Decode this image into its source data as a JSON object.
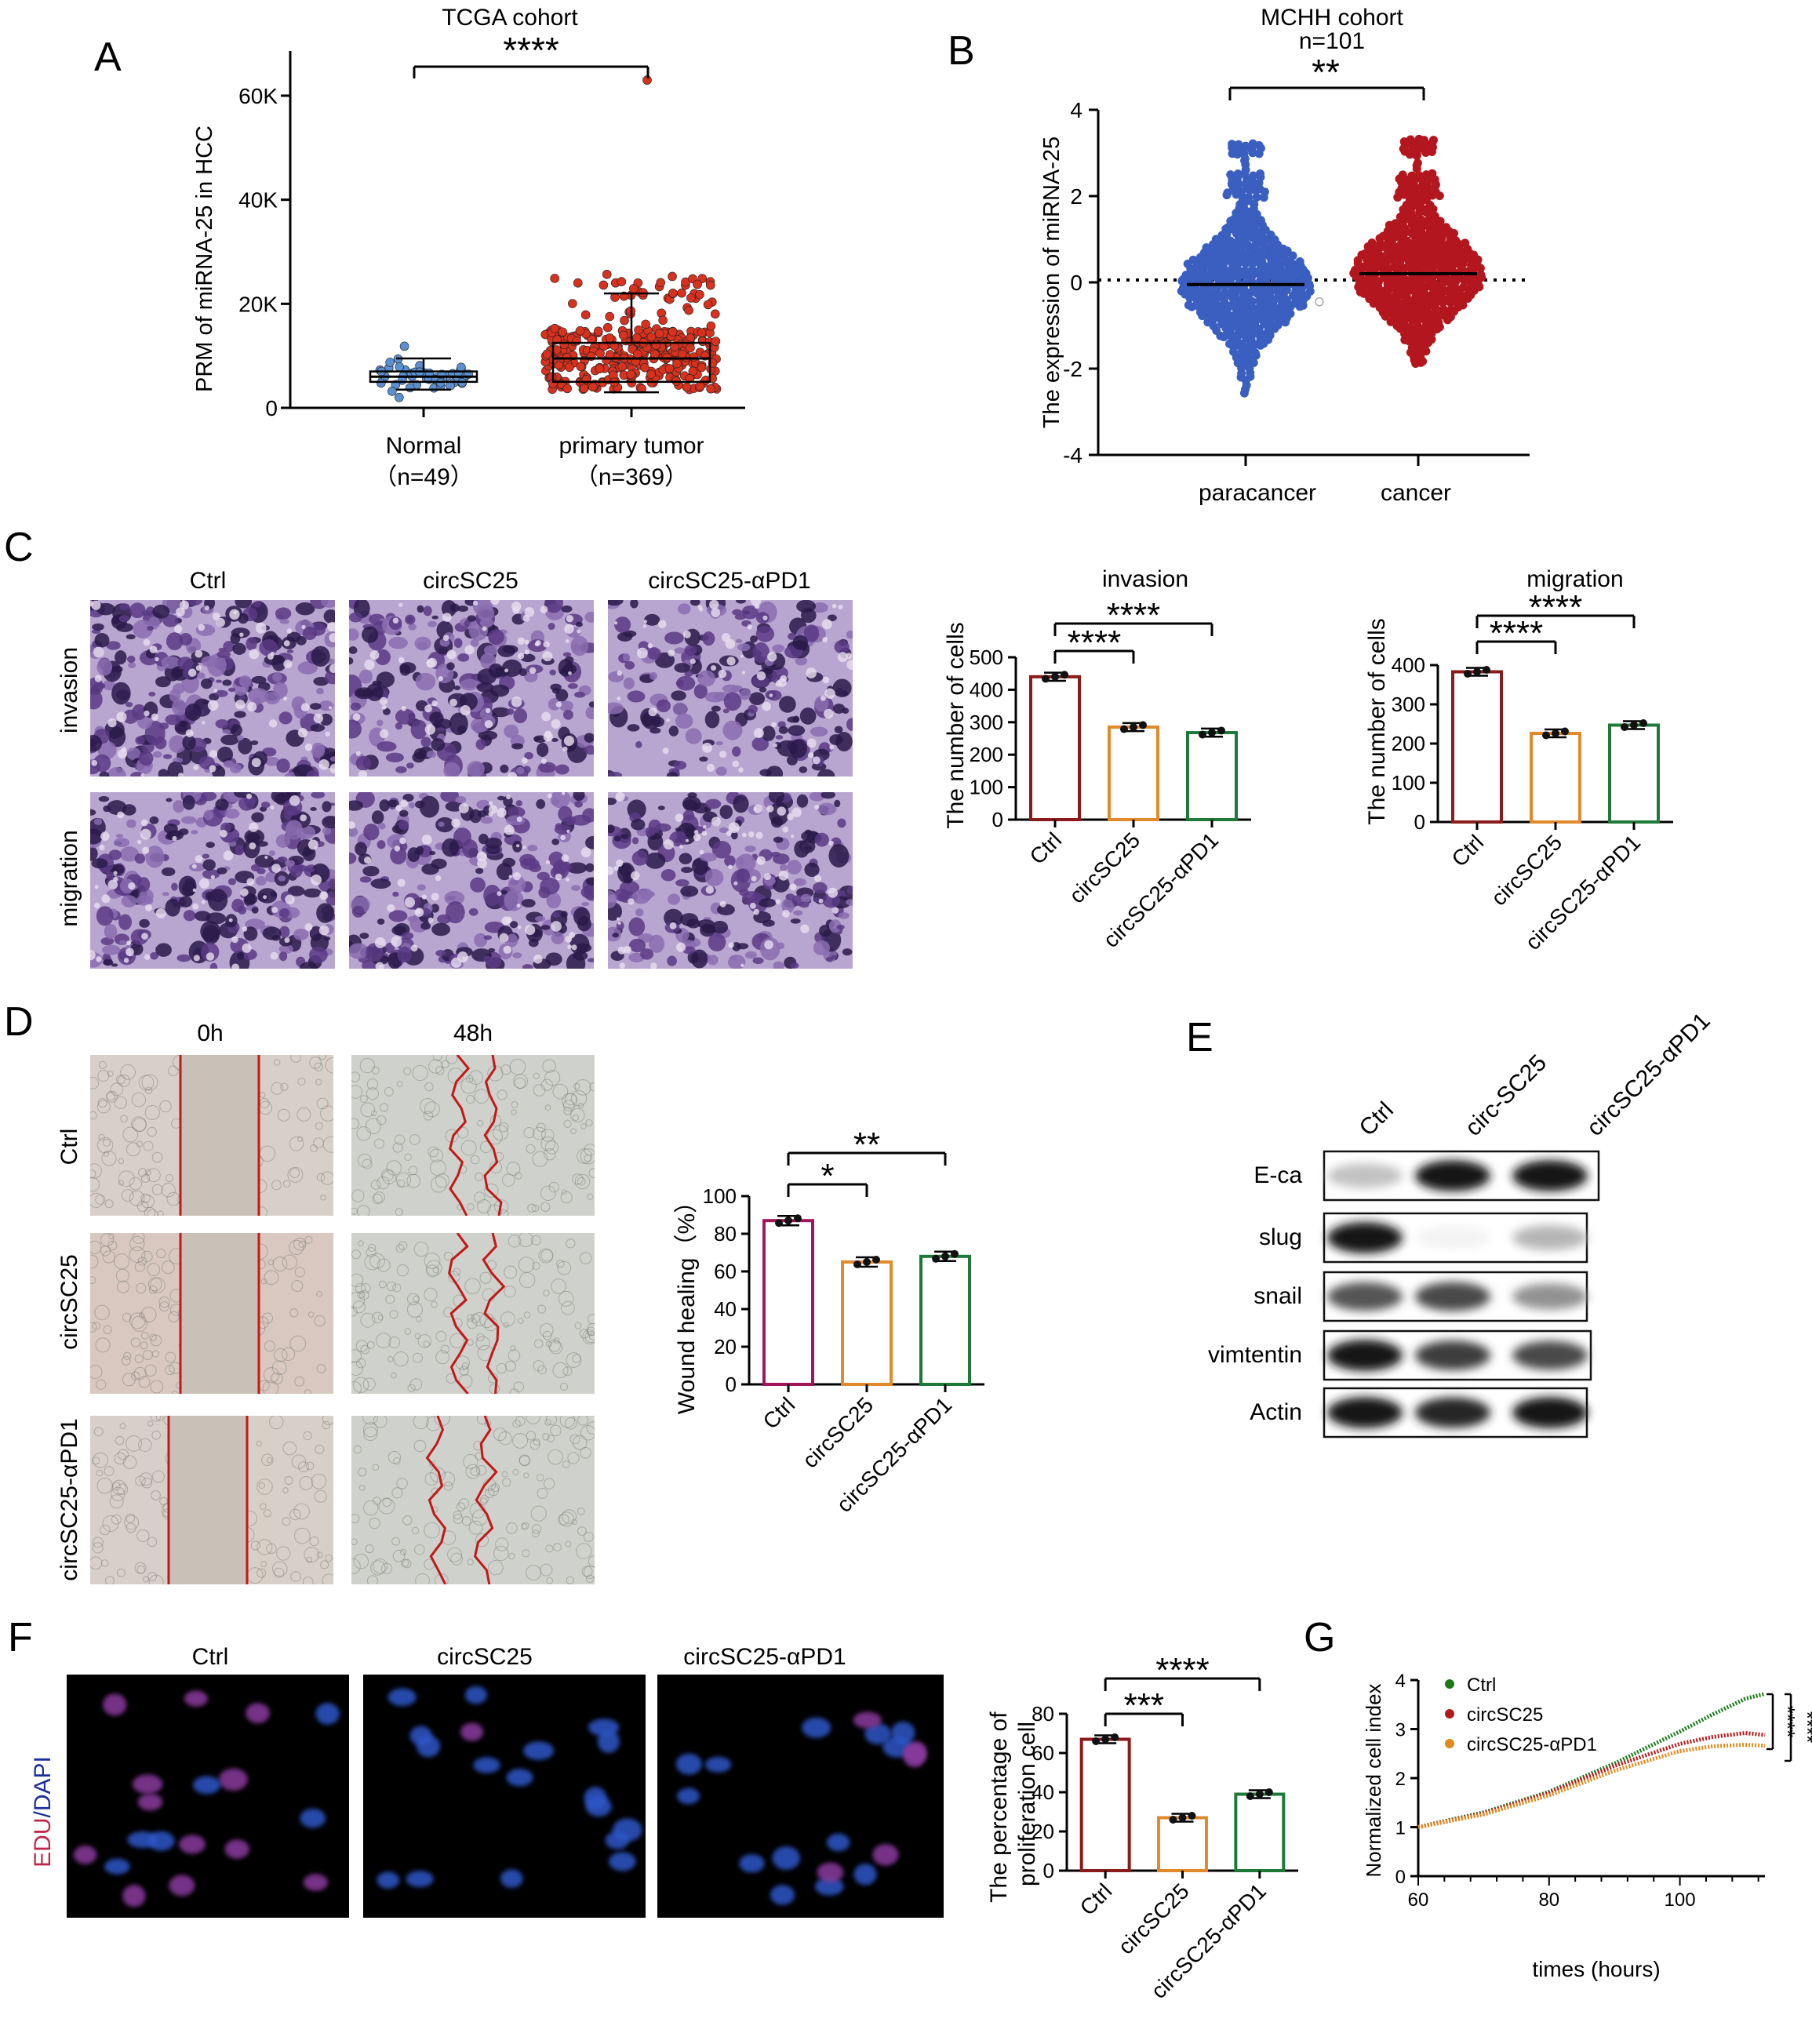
{
  "panel_letters": [
    "A",
    "B",
    "C",
    "D",
    "E",
    "F",
    "G"
  ],
  "colors": {
    "normal_dot": "#5b8fd0",
    "tumor_dot": "#d8321f",
    "para_dot": "#3a5fc0",
    "cancer_dot": "#b3161e",
    "ctrl_bar": "#8b1a1a",
    "circ_bar": "#e08a2c",
    "apd1_bar": "#1f7a3a",
    "ctrl_bar_d": "#a0165a",
    "ctrl_line": "#1a7a1a",
    "circ_line": "#b31b1b",
    "apd1_line": "#e08a1c"
  },
  "chart_data": [
    {
      "panel": "A",
      "type": "scatter",
      "title": "TCGA cohort",
      "ylabel": "PRM  of miRNA-25 in HCC",
      "yticks": [
        "0",
        "20K",
        "40K",
        "60K"
      ],
      "ylim": [
        0,
        60000
      ],
      "categories": [
        "Normal",
        "primary tumor"
      ],
      "category_ns": [
        "（n=49）",
        "（n=369）"
      ],
      "series": [
        {
          "name": "Normal",
          "n": 49,
          "median": 6000,
          "q1": 5000,
          "q3": 7000,
          "whisker_low": 3500,
          "whisker_high": 9500,
          "max": 13000
        },
        {
          "name": "primary tumor",
          "n": 369,
          "median": 9500,
          "q1": 5000,
          "q3": 12500,
          "whisker_low": 3000,
          "whisker_high": 22000,
          "max": 63000
        }
      ],
      "significance": "****"
    },
    {
      "panel": "B",
      "type": "scatter",
      "title": "MCHH cohort",
      "subtitle": "n=101",
      "ylabel": "The expression of miRNA-25",
      "yticks": [
        "-4",
        "-2",
        "0",
        "2",
        "4"
      ],
      "ylim": [
        -4,
        4
      ],
      "categories": [
        "paracancer",
        "cancer"
      ],
      "series": [
        {
          "name": "paracancer",
          "mean": -0.05,
          "min": -2.6,
          "max": 3.3
        },
        {
          "name": "cancer",
          "mean": 0.2,
          "min": -1.9,
          "max": 3.4
        }
      ],
      "significance": "**"
    },
    {
      "panel": "C-invasion",
      "type": "bar",
      "title": "invasion",
      "ylabel": "The number of cells",
      "yticks": [
        "0",
        "100",
        "200",
        "300",
        "400",
        "500"
      ],
      "ylim": [
        0,
        500
      ],
      "categories": [
        "Ctrl",
        "circSC25",
        "circSC25-αPD1"
      ],
      "values": [
        440,
        285,
        268
      ],
      "significance": [
        "****",
        "****"
      ]
    },
    {
      "panel": "C-migration",
      "type": "bar",
      "title": "migration",
      "ylabel": "The number of cells",
      "yticks": [
        "0",
        "100",
        "200",
        "300",
        "400"
      ],
      "ylim": [
        0,
        400
      ],
      "categories": [
        "Ctrl",
        "circSC25",
        "circSC25-αPD1"
      ],
      "values": [
        383,
        226,
        247
      ],
      "significance": [
        "****",
        "****"
      ]
    },
    {
      "panel": "D",
      "type": "bar",
      "ylabel": "Wound healing（%）",
      "yticks": [
        "0",
        "20",
        "40",
        "60",
        "80",
        "100"
      ],
      "ylim": [
        0,
        100
      ],
      "categories": [
        "Ctrl",
        "circSC25",
        "circSC25-αPD1"
      ],
      "values": [
        87,
        65,
        68
      ],
      "significance": [
        "*",
        "**"
      ]
    },
    {
      "panel": "F",
      "type": "bar",
      "ylabel": [
        "The percentage of",
        "proliferation cell"
      ],
      "yticks": [
        "0",
        "20",
        "40",
        "60",
        "80"
      ],
      "ylim": [
        0,
        80
      ],
      "categories": [
        "Ctrl",
        "circSC25",
        "circSC25-αPD1"
      ],
      "values": [
        67,
        27,
        39
      ],
      "significance": [
        "***",
        "****"
      ]
    },
    {
      "panel": "G",
      "type": "line",
      "xlabel": "times (hours)",
      "ylabel": "Normalized cell index",
      "xticks": [
        "60",
        "80",
        "100"
      ],
      "xlim": [
        60,
        113
      ],
      "yticks": [
        "0",
        "1",
        "2",
        "3",
        "4"
      ],
      "ylim": [
        0,
        4
      ],
      "series": [
        {
          "name": "Ctrl",
          "x": [
            60,
            70,
            80,
            90,
            100,
            105,
            110,
            113
          ],
          "y": [
            1.0,
            1.3,
            1.72,
            2.3,
            2.95,
            3.3,
            3.62,
            3.72
          ]
        },
        {
          "name": "circSC25",
          "x": [
            60,
            70,
            80,
            90,
            100,
            105,
            110,
            113
          ],
          "y": [
            1.0,
            1.28,
            1.7,
            2.25,
            2.7,
            2.84,
            2.92,
            2.88
          ]
        },
        {
          "name": "circSC25-αPD1",
          "x": [
            60,
            70,
            80,
            90,
            100,
            105,
            110,
            113
          ],
          "y": [
            1.0,
            1.26,
            1.65,
            2.15,
            2.55,
            2.65,
            2.68,
            2.66
          ]
        }
      ],
      "significance": [
        "****",
        "****"
      ]
    }
  ],
  "panel_c": {
    "columns": [
      "Ctrl",
      "circSC25",
      "circSC25-αPD1"
    ],
    "rows": [
      "invasion",
      "migration"
    ]
  },
  "panel_d": {
    "columns": [
      "0h",
      "48h"
    ],
    "rows": [
      "Ctrl",
      "circSC25",
      "circSC25-αPD1"
    ]
  },
  "panel_e": {
    "lanes": [
      "Ctrl",
      "circ-SC25",
      "circSC25-αPD1"
    ],
    "bands": [
      "E-ca",
      "slug",
      "snail",
      "vimtentin",
      "Actin"
    ],
    "intensity": [
      [
        0.25,
        0.95,
        0.95
      ],
      [
        0.98,
        0.05,
        0.3
      ],
      [
        0.7,
        0.75,
        0.45
      ],
      [
        0.98,
        0.8,
        0.75
      ],
      [
        0.95,
        0.9,
        0.97
      ]
    ]
  },
  "panel_f": {
    "columns": [
      "Ctrl",
      "circSC25",
      "circSC25-αPD1"
    ],
    "stain_label_a": "EDU",
    "stain_sep": "/",
    "stain_label_b": "DAPI"
  }
}
